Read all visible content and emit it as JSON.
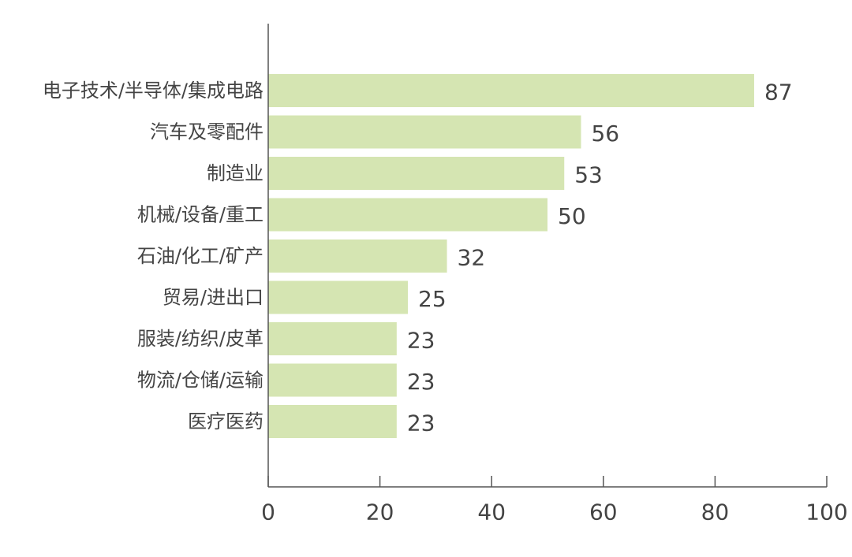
{
  "chart_data": {
    "type": "bar",
    "orientation": "horizontal",
    "categories": [
      "电子技术/半导体/集成电路",
      "汽车及零配件",
      "制造业",
      "机械/设备/重工",
      "石油/化工/矿产",
      "贸易/进出口",
      "服装/纺织/皮革",
      "物流/仓储/运输",
      "医疗医药"
    ],
    "values": [
      87,
      56,
      53,
      50,
      32,
      25,
      23,
      23,
      23
    ],
    "xlim": [
      0,
      100
    ],
    "xticks": [
      0,
      20,
      40,
      60,
      80,
      100
    ],
    "grid": false,
    "data_labels": true,
    "colors": {
      "bar": "#d5e5b2",
      "axis": "#555555",
      "text": "#444444"
    }
  }
}
